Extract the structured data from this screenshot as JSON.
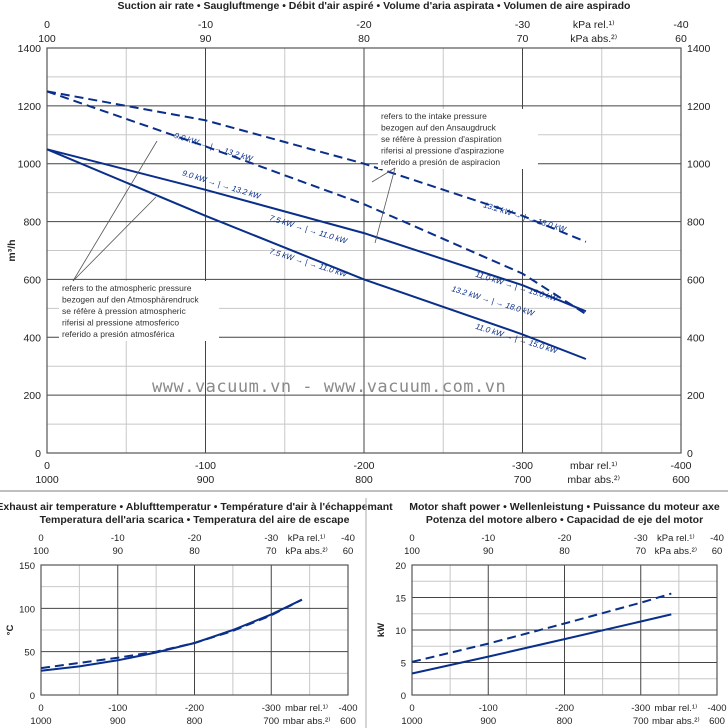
{
  "chart_data": [
    {
      "id": "suction",
      "type": "line",
      "title": "Suction air rate  •  Saugluftmenge  •  Débit d'air aspiré  •  Volume d'aria aspirata  •  Volumen de aire aspirado",
      "ylabel": "m³/h",
      "ylim": [
        0,
        1400
      ],
      "yticks": [
        0,
        200,
        400,
        600,
        800,
        1000,
        1200,
        1400
      ],
      "xlim": [
        0,
        -400
      ],
      "x_top_rel": {
        "ticks": [
          "0",
          "-10",
          "-20",
          "-30",
          "-40"
        ],
        "unit": "kPa rel.¹⁾"
      },
      "x_top_abs": {
        "ticks": [
          "100",
          "90",
          "80",
          "70",
          "60"
        ],
        "unit": "kPa abs.²⁾"
      },
      "x_bot_rel": {
        "ticks": [
          "0",
          "-100",
          "-200",
          "-300",
          "-400"
        ],
        "unit": "mbar rel.¹⁾"
      },
      "x_bot_abs": {
        "ticks": [
          "1000",
          "900",
          "800",
          "700",
          "600"
        ],
        "unit": "mbar abs.²⁾"
      },
      "grid": true,
      "series": [
        {
          "name": "dashed upper (intake pressure, 9.0→13.2 / 13.2→18.0 kW)",
          "style": "dashed",
          "x": [
            0,
            -100,
            -200,
            -300,
            -340
          ],
          "y": [
            1250,
            1150,
            1000,
            820,
            730
          ]
        },
        {
          "name": "dashed lower (intake pressure)",
          "style": "dashed",
          "x": [
            0,
            -100,
            -200,
            -300,
            -340
          ],
          "y": [
            1250,
            1060,
            860,
            620,
            480
          ]
        },
        {
          "name": "solid upper (atmospheric pressure)",
          "style": "solid",
          "x": [
            0,
            -100,
            -200,
            -300,
            -340
          ],
          "y": [
            1050,
            910,
            760,
            580,
            490
          ]
        },
        {
          "name": "solid lower (atmospheric pressure)",
          "style": "solid",
          "x": [
            0,
            -100,
            -200,
            -300,
            -340
          ],
          "y": [
            1050,
            820,
            600,
            410,
            325
          ]
        }
      ],
      "annotations": [
        {
          "text": "9.0 kW → | → 13.2 kW",
          "x": -80,
          "y": 1090
        },
        {
          "text": "9.0 kW → | → 13.2 kW",
          "x": -85,
          "y": 960
        },
        {
          "text": "13.2 kW → | → 18.0 kW",
          "x": -275,
          "y": 850
        },
        {
          "text": "7.5 kW → | → 11.0 kW",
          "x": -140,
          "y": 805
        },
        {
          "text": "7.5 kW → | → 11.0 kW",
          "x": -140,
          "y": 690
        },
        {
          "text": "13.2 kW → | → 18.0 kW",
          "x": -255,
          "y": 560
        },
        {
          "text": "11.0 kW → | → 15.0 kW",
          "x": -270,
          "y": 610
        },
        {
          "text": "11.0 kW → | → 15.0 kW",
          "x": -270,
          "y": 430
        }
      ],
      "notes": {
        "intake": [
          "refers to the intake pressure",
          "bezogen auf den Ansaugdruck",
          "se réfère à pression d'aspiration",
          "riferisi al pressione d'aspirazione",
          "referido a presión de aspiracion"
        ],
        "atmospheric": [
          "refers to the atmospheric pressure",
          "bezogen auf den Atmosphärendruck",
          "se réfère à pression atmospheric",
          "riferisi al pressione atmosferico",
          "referido a presión atmosférica"
        ]
      }
    },
    {
      "id": "temperature",
      "type": "line",
      "title_lines": [
        "Exhaust air temperature  •  Ablufttemperatur  •  Température d'air à l'échappemant",
        "Temperatura dell'aria scarica  •  Temperatura del aire de escape"
      ],
      "ylabel": "°C",
      "ylim": [
        0,
        150
      ],
      "yticks": [
        0,
        50,
        100,
        150
      ],
      "xlim": [
        0,
        -400
      ],
      "x_top_rel": {
        "ticks": [
          "0",
          "-10",
          "-20",
          "-30",
          "-40"
        ],
        "unit": "kPa rel.¹⁾"
      },
      "x_top_abs": {
        "ticks": [
          "100",
          "90",
          "80",
          "70",
          "60"
        ],
        "unit": "kPa abs.²⁾"
      },
      "x_bot_rel": {
        "ticks": [
          "0",
          "-100",
          "-200",
          "-300",
          "-400"
        ],
        "unit": "mbar rel.¹⁾"
      },
      "x_bot_abs": {
        "ticks": [
          "1000",
          "900",
          "800",
          "700",
          "600"
        ],
        "unit": "mbar abs.²⁾"
      },
      "grid": true,
      "series": [
        {
          "name": "solid",
          "style": "solid",
          "x": [
            0,
            -50,
            -100,
            -150,
            -200,
            -250,
            -300,
            -340
          ],
          "y": [
            28,
            33,
            40,
            49,
            60,
            75,
            93,
            110
          ]
        },
        {
          "name": "dashed",
          "style": "dashed",
          "x": [
            0,
            -50,
            -100,
            -150,
            -200,
            -250,
            -300,
            -340
          ],
          "y": [
            31,
            37,
            43,
            50,
            60,
            74,
            92,
            110
          ]
        }
      ]
    },
    {
      "id": "power",
      "type": "line",
      "title_lines": [
        "Motor shaft power  •  Wellenleistung  •  Puissance du moteur axe",
        "Potenza del motore albero  •  Capacidad de eje del motor"
      ],
      "ylabel": "kW",
      "ylim": [
        0,
        20
      ],
      "yticks": [
        0,
        5,
        10,
        15,
        20
      ],
      "xlim": [
        0,
        -400
      ],
      "x_top_rel": {
        "ticks": [
          "0",
          "-10",
          "-20",
          "-30",
          "-40"
        ],
        "unit": "kPa rel.¹⁾"
      },
      "x_top_abs": {
        "ticks": [
          "100",
          "90",
          "80",
          "70",
          "60"
        ],
        "unit": "kPa abs.²⁾"
      },
      "x_bot_rel": {
        "ticks": [
          "0",
          "-100",
          "-200",
          "-300",
          "-400"
        ],
        "unit": "mbar rel.¹⁾"
      },
      "x_bot_abs": {
        "ticks": [
          "1000",
          "900",
          "800",
          "700",
          "600"
        ],
        "unit": "mbar abs.²⁾"
      },
      "grid": true,
      "series": [
        {
          "name": "solid",
          "style": "solid",
          "x": [
            0,
            -100,
            -200,
            -300,
            -340
          ],
          "y": [
            3.3,
            5.9,
            8.6,
            11.3,
            12.4
          ]
        },
        {
          "name": "dashed",
          "style": "dashed",
          "x": [
            0,
            -100,
            -200,
            -300,
            -340
          ],
          "y": [
            5.1,
            7.9,
            11.0,
            14.2,
            15.6
          ]
        }
      ]
    }
  ],
  "watermark": "www.vacuum.vn - www.vacuum.com.vn",
  "colors": {
    "line": "#0a2f8a",
    "grid_major": "#444444",
    "grid_minor": "#c8c8c8"
  }
}
